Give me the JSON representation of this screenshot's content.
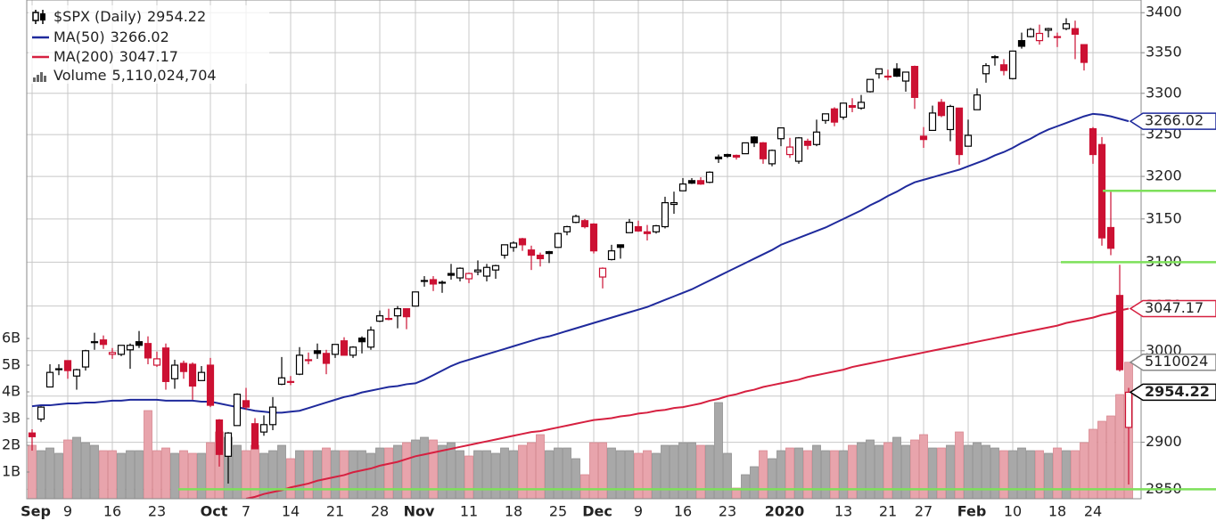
{
  "chart_data": {
    "type": "candlestick",
    "title": "$SPX (Daily)",
    "last_label": "2954.22",
    "up_color": "#000000",
    "down_color": "#cc1133",
    "log": true,
    "grid": true,
    "ylim": [
      2840,
      3416
    ],
    "yticks": [
      3400,
      3350,
      3300,
      3250,
      3200,
      3150,
      3100,
      3050,
      3000,
      2950,
      2900,
      2850
    ],
    "y2lim": [
      0,
      18.67
    ],
    "y2ticks": [
      {
        "value": 1,
        "label": "1B"
      },
      {
        "value": 2,
        "label": "2B"
      },
      {
        "value": 3,
        "label": "3B"
      },
      {
        "value": 4,
        "label": "4B"
      },
      {
        "value": 5,
        "label": "5B"
      },
      {
        "value": 6,
        "label": "6B"
      }
    ],
    "categories": [
      "Sep",
      null,
      null,
      null,
      "9",
      null,
      null,
      null,
      null,
      "16",
      null,
      null,
      null,
      null,
      "23",
      null,
      null,
      null,
      null,
      null,
      "Oct",
      null,
      null,
      null,
      "7",
      null,
      null,
      null,
      null,
      "14",
      null,
      null,
      null,
      null,
      "21",
      null,
      null,
      null,
      null,
      "28",
      null,
      null,
      null,
      "Nov",
      null,
      null,
      null,
      null,
      null,
      "11",
      null,
      null,
      null,
      null,
      "18",
      null,
      null,
      null,
      null,
      "25",
      null,
      null,
      null,
      "Dec",
      null,
      null,
      null,
      null,
      "9",
      null,
      null,
      null,
      null,
      "16",
      null,
      null,
      null,
      null,
      "23",
      null,
      null,
      null,
      null,
      null,
      "2020",
      null,
      null,
      null,
      null,
      null,
      null,
      "13",
      null,
      null,
      null,
      null,
      "21",
      null,
      null,
      null,
      "27",
      null,
      null,
      null,
      null,
      "Feb",
      null,
      null,
      null,
      null,
      "10",
      null,
      null,
      null,
      null,
      "18",
      null,
      null,
      null,
      "24",
      null,
      null,
      null,
      null
    ],
    "ohlc": [
      [
        2910,
        2914,
        2891,
        2906
      ],
      [
        2925,
        2939,
        2922,
        2938
      ],
      [
        2960,
        2985,
        2960,
        2976
      ],
      [
        2980,
        2985,
        2973,
        2979
      ],
      [
        2989,
        2989,
        2969,
        2978
      ],
      [
        2972,
        2980,
        2957,
        2979
      ],
      [
        2982,
        3001,
        2978,
        3000
      ],
      [
        3010,
        3020,
        3001,
        3009
      ],
      [
        3012,
        3017,
        3002,
        3007
      ],
      [
        2996,
        3003,
        2991,
        2998
      ],
      [
        2996,
        3006,
        2994,
        3006
      ],
      [
        3001,
        3008,
        2980,
        3006
      ],
      [
        3010,
        3022,
        3003,
        3006
      ],
      [
        3008,
        3016,
        2985,
        2992
      ],
      [
        2984,
        2999,
        2982,
        2991
      ],
      [
        3003,
        3008,
        2957,
        2966
      ],
      [
        2969,
        2990,
        2958,
        2984
      ],
      [
        2986,
        2989,
        2969,
        2977
      ],
      [
        2985,
        2987,
        2946,
        2961
      ],
      [
        2967,
        2983,
        2967,
        2976
      ],
      [
        2984,
        2992,
        2938,
        2940
      ],
      [
        2924,
        2925,
        2874,
        2887
      ],
      [
        2885,
        2911,
        2856,
        2910
      ],
      [
        2918,
        2953,
        2918,
        2952
      ],
      [
        2945,
        2959,
        2935,
        2938
      ],
      [
        2920,
        2926,
        2893,
        2893
      ],
      [
        2911,
        2929,
        2907,
        2919
      ],
      [
        2919,
        2949,
        2913,
        2938
      ],
      [
        2963,
        2993,
        2962,
        2970
      ],
      [
        2966,
        2972,
        2962,
        2966
      ],
      [
        2974,
        3004,
        2973,
        2995
      ],
      [
        2990,
        2998,
        2985,
        2989
      ],
      [
        3000,
        3008,
        2991,
        2997
      ],
      [
        2997,
        3001,
        2974,
        2986
      ],
      [
        2996,
        3007,
        2992,
        3007
      ],
      [
        3011,
        3015,
        2995,
        2995
      ],
      [
        2995,
        3005,
        2992,
        3004
      ],
      [
        3014,
        3016,
        2997,
        3010
      ],
      [
        3004,
        3027,
        3001,
        3023
      ],
      [
        3033,
        3045,
        3032,
        3039
      ],
      [
        3036,
        3047,
        3034,
        3036
      ],
      [
        3039,
        3050,
        3025,
        3047
      ],
      [
        3047,
        3047,
        3024,
        3038
      ],
      [
        3050,
        3066,
        3050,
        3066
      ],
      [
        3079,
        3084,
        3072,
        3078
      ],
      [
        3080,
        3084,
        3067,
        3075
      ],
      [
        3076,
        3079,
        3065,
        3077
      ],
      [
        3087,
        3098,
        3080,
        3085
      ],
      [
        3082,
        3094,
        3078,
        3093
      ],
      [
        3081,
        3088,
        3076,
        3087
      ],
      [
        3089,
        3102,
        3085,
        3091
      ],
      [
        3084,
        3098,
        3078,
        3094
      ],
      [
        3091,
        3097,
        3081,
        3096
      ],
      [
        3108,
        3120,
        3104,
        3120
      ],
      [
        3117,
        3124,
        3112,
        3122
      ],
      [
        3127,
        3128,
        3113,
        3120
      ],
      [
        3114,
        3119,
        3091,
        3108
      ],
      [
        3108,
        3111,
        3095,
        3104
      ],
      [
        3112,
        3113,
        3099,
        3110
      ],
      [
        3117,
        3134,
        3117,
        3133
      ],
      [
        3135,
        3142,
        3131,
        3141
      ],
      [
        3146,
        3155,
        3145,
        3153
      ],
      [
        3148,
        3150,
        3139,
        3141
      ],
      [
        3144,
        3145,
        3110,
        3113
      ],
      [
        3083,
        3094,
        3070,
        3093
      ],
      [
        3103,
        3120,
        3102,
        3113
      ],
      [
        3120,
        3120,
        3104,
        3117
      ],
      [
        3134,
        3150,
        3134,
        3146
      ],
      [
        3141,
        3148,
        3135,
        3136
      ],
      [
        3135,
        3143,
        3125,
        3133
      ],
      [
        3135,
        3143,
        3133,
        3142
      ],
      [
        3141,
        3176,
        3139,
        3169
      ],
      [
        3167,
        3182,
        3156,
        3169
      ],
      [
        3183,
        3198,
        3183,
        3191
      ],
      [
        3195,
        3198,
        3191,
        3192
      ],
      [
        3195,
        3199,
        3190,
        3191
      ],
      [
        3193,
        3206,
        3192,
        3205
      ],
      [
        3223,
        3226,
        3216,
        3221
      ],
      [
        3226,
        3227,
        3222,
        3224
      ],
      [
        3225,
        3226,
        3220,
        3223
      ],
      [
        3227,
        3240,
        3227,
        3240
      ],
      [
        3247,
        3248,
        3235,
        3240
      ],
      [
        3240,
        3241,
        3215,
        3221
      ],
      [
        3215,
        3232,
        3212,
        3231
      ],
      [
        3245,
        3258,
        3236,
        3258
      ],
      [
        3226,
        3246,
        3222,
        3235
      ],
      [
        3218,
        3247,
        3215,
        3246
      ],
      [
        3242,
        3245,
        3232,
        3237
      ],
      [
        3238,
        3268,
        3236,
        3253
      ],
      [
        3267,
        3275,
        3263,
        3275
      ],
      [
        3281,
        3283,
        3260,
        3265
      ],
      [
        3271,
        3288,
        3268,
        3288
      ],
      [
        3285,
        3294,
        3277,
        3283
      ],
      [
        3282,
        3298,
        3280,
        3289
      ],
      [
        3302,
        3317,
        3301,
        3317
      ],
      [
        3324,
        3330,
        3318,
        3330
      ],
      [
        3321,
        3329,
        3316,
        3321
      ],
      [
        3330,
        3337,
        3320,
        3321
      ],
      [
        3315,
        3326,
        3302,
        3326
      ],
      [
        3333,
        3334,
        3281,
        3295
      ],
      [
        3248,
        3259,
        3234,
        3244
      ],
      [
        3255,
        3285,
        3255,
        3276
      ],
      [
        3289,
        3293,
        3271,
        3273
      ],
      [
        3256,
        3286,
        3242,
        3284
      ],
      [
        3282,
        3282,
        3214,
        3226
      ],
      [
        3236,
        3268,
        3236,
        3249
      ],
      [
        3280,
        3306,
        3280,
        3298
      ],
      [
        3324,
        3337,
        3313,
        3334
      ],
      [
        3344,
        3347,
        3334,
        3345
      ],
      [
        3335,
        3342,
        3322,
        3328
      ],
      [
        3318,
        3352,
        3317,
        3352
      ],
      [
        3365,
        3375,
        3355,
        3358
      ],
      [
        3370,
        3381,
        3369,
        3379
      ],
      [
        3365,
        3385,
        3360,
        3374
      ],
      [
        3378,
        3381,
        3369,
        3380
      ],
      [
        3370,
        3375,
        3357,
        3370
      ],
      [
        3380,
        3393,
        3378,
        3386
      ],
      [
        3380,
        3390,
        3342,
        3373
      ],
      [
        3360,
        3360,
        3328,
        3338
      ],
      [
        3257,
        3259,
        3215,
        3226
      ],
      [
        3238,
        3247,
        3119,
        3128
      ],
      [
        3140,
        3182,
        3108,
        3116
      ],
      [
        3062,
        3097,
        2977,
        2979
      ],
      [
        2916,
        2959,
        2855,
        2954.22
      ]
    ],
    "series": [
      {
        "name": "MA(50)",
        "color": "#1f2a9c",
        "last_label": "3266.02",
        "values": [
          2939,
          2940,
          2940,
          2941,
          2942,
          2942,
          2943,
          2943,
          2944,
          2945,
          2945,
          2946,
          2946,
          2946,
          2946,
          2945,
          2945,
          2945,
          2945,
          2944,
          2944,
          2942,
          2940,
          2938,
          2936,
          2934,
          2933,
          2932,
          2932,
          2933,
          2934,
          2937,
          2940,
          2943,
          2946,
          2949,
          2951,
          2954,
          2956,
          2958,
          2960,
          2961,
          2963,
          2964,
          2968,
          2973,
          2978,
          2983,
          2987,
          2990,
          2993,
          2996,
          2999,
          3002,
          3005,
          3008,
          3011,
          3014,
          3016,
          3019,
          3022,
          3025,
          3028,
          3031,
          3034,
          3037,
          3040,
          3043,
          3046,
          3049,
          3053,
          3057,
          3061,
          3065,
          3069,
          3074,
          3079,
          3084,
          3089,
          3094,
          3099,
          3104,
          3109,
          3114,
          3120,
          3124,
          3128,
          3132,
          3136,
          3140,
          3145,
          3150,
          3155,
          3160,
          3166,
          3171,
          3177,
          3182,
          3188,
          3193,
          3196,
          3199,
          3202,
          3205,
          3208,
          3212,
          3216,
          3220,
          3225,
          3229,
          3234,
          3240,
          3245,
          3251,
          3256,
          3260,
          3264,
          3268,
          3272,
          3275,
          3274,
          3272,
          3269,
          3266.02
        ]
      },
      {
        "name": "MA(200)",
        "color": "#d62040",
        "last_label": "3047.17",
        "values": [
          null,
          null,
          null,
          null,
          null,
          null,
          null,
          null,
          null,
          null,
          null,
          null,
          null,
          null,
          null,
          null,
          null,
          null,
          null,
          null,
          null,
          null,
          null,
          null,
          2840,
          2842,
          2845,
          2847,
          2849,
          2852,
          2854,
          2856,
          2859,
          2861,
          2863,
          2865,
          2868,
          2870,
          2872,
          2875,
          2877,
          2879,
          2882,
          2885,
          2887,
          2889,
          2891,
          2893,
          2895,
          2897,
          2899,
          2901,
          2903,
          2905,
          2907,
          2909,
          2911,
          2912,
          2914,
          2916,
          2918,
          2920,
          2922,
          2924,
          2925,
          2926,
          2928,
          2929,
          2931,
          2932,
          2934,
          2935,
          2937,
          2938,
          2940,
          2942,
          2945,
          2947,
          2950,
          2952,
          2955,
          2957,
          2960,
          2962,
          2964,
          2966,
          2968,
          2971,
          2973,
          2975,
          2977,
          2979,
          2982,
          2984,
          2986,
          2988,
          2990,
          2992,
          2994,
          2996,
          2998,
          3000,
          3002,
          3004,
          3006,
          3008,
          3010,
          3012,
          3014,
          3016,
          3018,
          3020,
          3022,
          3024,
          3026,
          3028,
          3031,
          3033,
          3035,
          3037,
          3040,
          3042,
          3045,
          3047.17
        ]
      },
      {
        "name": "Volume",
        "type": "bar",
        "axis": "y2",
        "color": "#a8a8a8",
        "down_color": "#e8a4ac",
        "last_label": "5,110,024,704",
        "tag_label": "5110024",
        "values": [
          2.0,
          1.8,
          1.9,
          1.7,
          2.2,
          2.3,
          2.1,
          2.0,
          1.8,
          1.8,
          1.7,
          1.8,
          1.8,
          3.3,
          1.8,
          1.9,
          1.7,
          1.8,
          1.7,
          1.7,
          2.1,
          2.5,
          2.3,
          2.0,
          1.8,
          2.0,
          1.7,
          1.8,
          2.0,
          1.5,
          1.8,
          1.8,
          1.8,
          1.9,
          1.8,
          1.8,
          1.8,
          1.8,
          1.7,
          1.9,
          1.9,
          2.0,
          2.1,
          2.2,
          2.3,
          2.2,
          2.0,
          2.1,
          1.8,
          1.6,
          1.8,
          1.8,
          1.7,
          1.9,
          1.8,
          2.0,
          2.1,
          2.4,
          1.8,
          1.9,
          1.9,
          1.5,
          0.9,
          2.1,
          2.1,
          1.9,
          1.8,
          1.8,
          1.7,
          1.8,
          1.7,
          2.0,
          2.0,
          2.1,
          2.1,
          2.0,
          2.0,
          3.6,
          1.7,
          0.4,
          0.9,
          1.2,
          1.8,
          1.5,
          1.8,
          1.9,
          1.9,
          1.8,
          2.0,
          1.8,
          1.8,
          1.8,
          2.0,
          2.1,
          2.2,
          2.0,
          2.1,
          2.3,
          2.0,
          2.2,
          2.4,
          1.9,
          1.9,
          2.0,
          2.5,
          2.0,
          2.1,
          2.0,
          1.9,
          1.8,
          1.8,
          1.9,
          1.8,
          1.8,
          1.7,
          1.9,
          1.8,
          1.8,
          2.1,
          2.6,
          2.9,
          3.1,
          3.9,
          5.110024704
        ]
      }
    ],
    "levels": {
      "color": "#7de05a",
      "values": [
        3183,
        3100,
        2850
      ]
    }
  }
}
